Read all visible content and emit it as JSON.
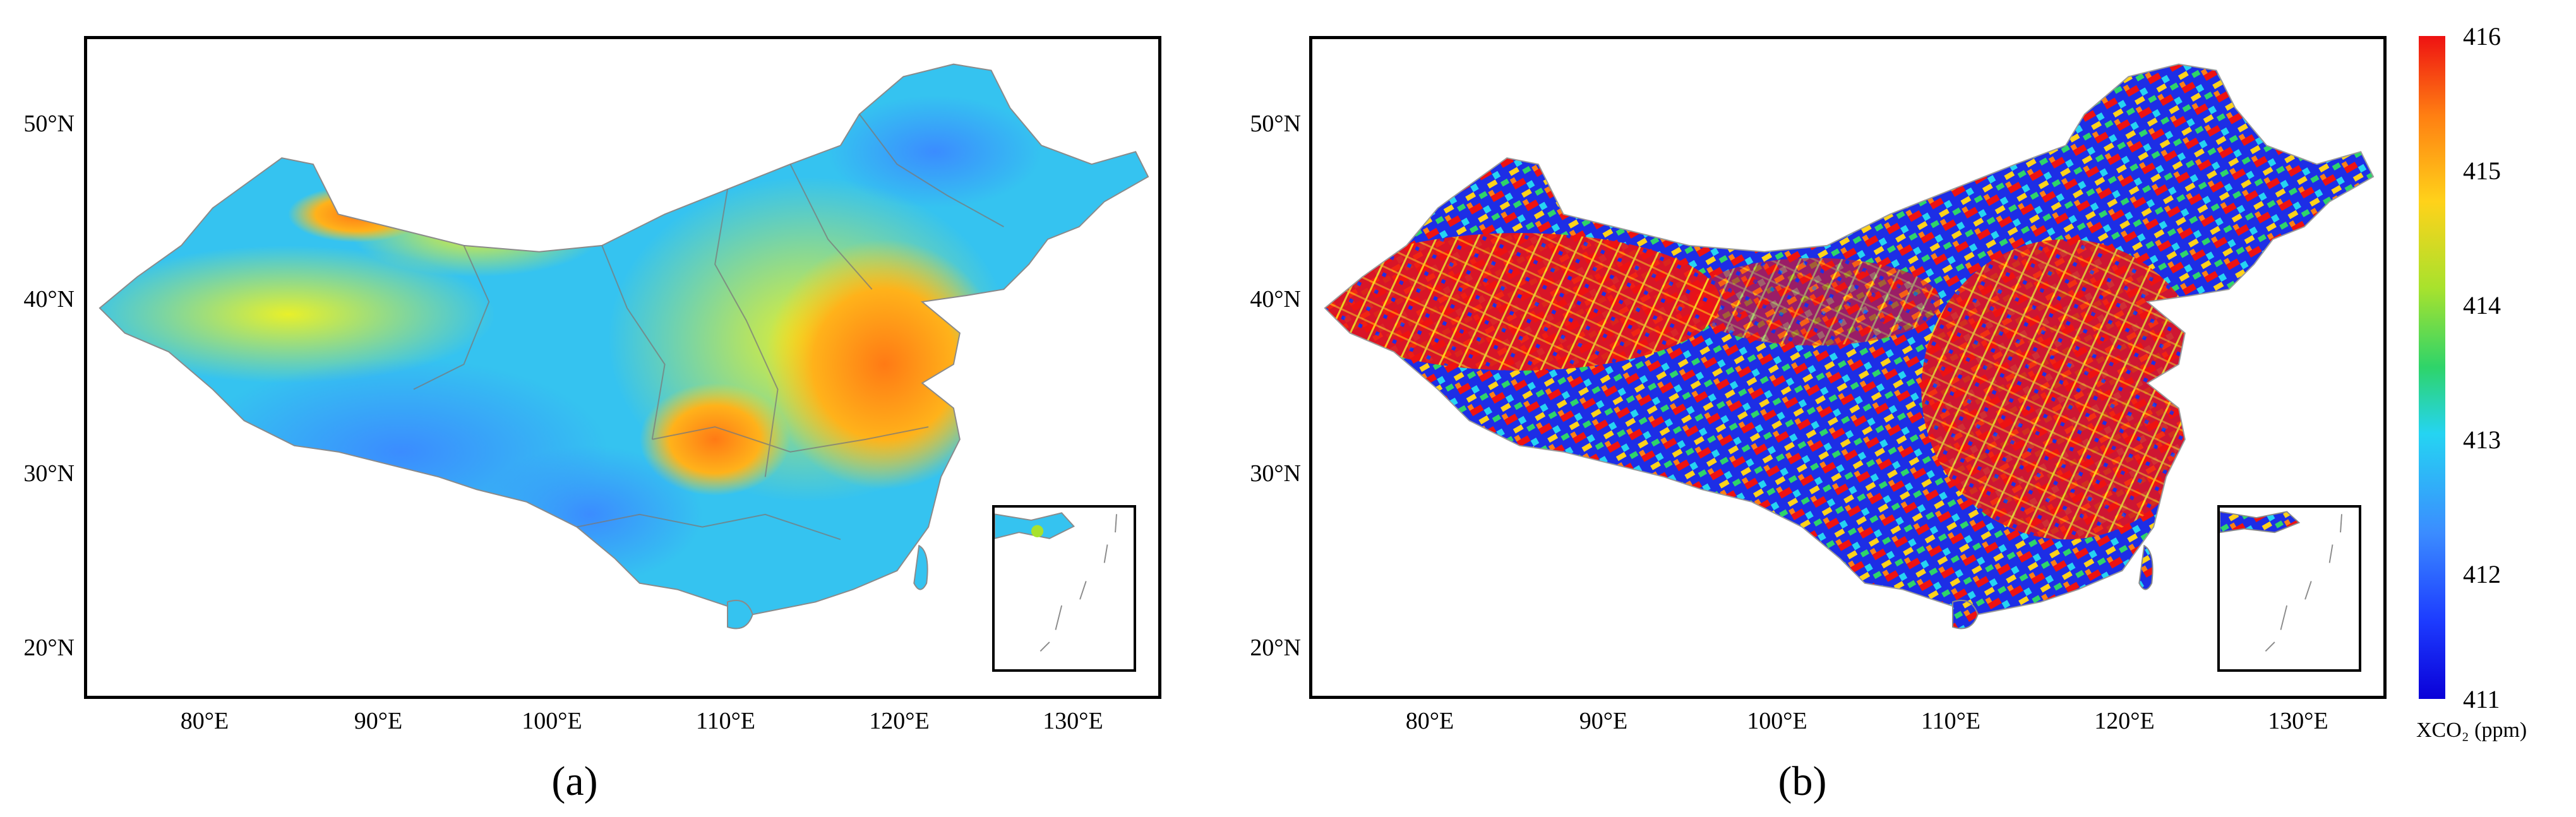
{
  "panels": [
    {
      "caption": "(a)"
    },
    {
      "caption": "(b)"
    }
  ],
  "axes": {
    "x_ticks": [
      "80°E",
      "90°E",
      "100°E",
      "110°E",
      "120°E",
      "130°E"
    ],
    "y_ticks": [
      "50°N",
      "40°N",
      "30°N",
      "20°N"
    ]
  },
  "colorbar": {
    "title": "XCO₂ (ppm)",
    "ticks": [
      "416",
      "415",
      "414",
      "413",
      "412",
      "411"
    ],
    "min": 411,
    "max": 416,
    "colors": [
      "#0a00d8",
      "#3b8cff",
      "#25d4f2",
      "#2ed46a",
      "#ffd21a",
      "#ff7f12",
      "#ee1212"
    ]
  }
}
